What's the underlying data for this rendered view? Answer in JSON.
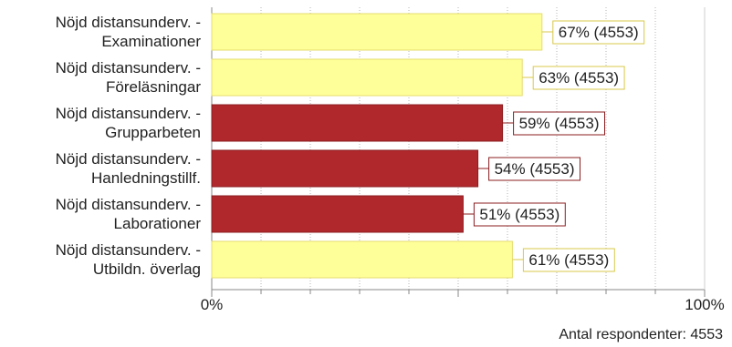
{
  "chart_data": {
    "type": "bar",
    "orientation": "horizontal",
    "categories": [
      [
        "Nöjd distansunderv. -",
        "Examinationer"
      ],
      [
        "Nöjd distansunderv. -",
        "Föreläsningar"
      ],
      [
        "Nöjd distansunderv. -",
        "Grupparbeten"
      ],
      [
        "Nöjd distansunderv. -",
        "Hanledningstillf."
      ],
      [
        "Nöjd distansunderv. -",
        "Laborationer"
      ],
      [
        "Nöjd distansunderv. -",
        "Utbildn. överlag"
      ]
    ],
    "values": [
      67,
      63,
      59,
      54,
      51,
      61
    ],
    "value_labels": [
      "67% (4553)",
      "63% (4553)",
      "59% (4553)",
      "54% (4553)",
      "51% (4553)",
      "61% (4553)"
    ],
    "bar_colors": [
      "#ffff99",
      "#ffff99",
      "#b0282c",
      "#b0282c",
      "#b0282c",
      "#ffff99"
    ],
    "label_border_colors": [
      "#d8c94a",
      "#d8c94a",
      "#8b1c1f",
      "#8b1c1f",
      "#8b1c1f",
      "#d8c94a"
    ],
    "xlim": [
      0,
      100
    ],
    "x_tick_labels": [
      "0%",
      "100%"
    ],
    "grid": "vertical-dotted",
    "footer": "Antal respondenter: 4553"
  }
}
